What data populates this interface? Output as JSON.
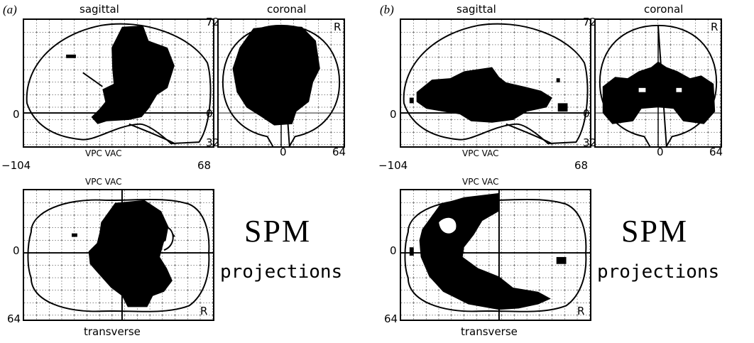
{
  "panels": [
    {
      "label": "(a)",
      "sagittal_title": "sagittal",
      "coronal_title": "coronal",
      "transverse_title": "transverse",
      "sagittal_zero": "0",
      "coronal_top": "72",
      "coronal_zero": "0",
      "coronal_bottom": "32",
      "coronal_x_zero": "0",
      "coronal_x_right": "64",
      "coronal_R": "R",
      "sagittal_vpc_vac": "VPC VAC",
      "x_left": "−104",
      "x_right": "68",
      "transverse_vpc_vac": "VPC VAC",
      "transverse_zero": "0",
      "transverse_bottom": "64",
      "transverse_R": "R",
      "spm": "SPM",
      "projections": "projections"
    },
    {
      "label": "(b)",
      "sagittal_title": "sagittal",
      "coronal_title": "coronal",
      "transverse_title": "transverse",
      "sagittal_zero": "0",
      "coronal_top": "72",
      "coronal_zero": "0",
      "coronal_bottom": "32",
      "coronal_x_zero": "0",
      "coronal_x_right": "64",
      "coronal_R": "R",
      "sagittal_vpc_vac": "VPC VAC",
      "x_left": "−104",
      "x_right": "68",
      "transverse_vpc_vac": "VPC VAC",
      "transverse_zero": "0",
      "transverse_bottom": "64",
      "transverse_R": "R",
      "spm": "SPM",
      "projections": "projections"
    }
  ],
  "colors": {
    "ink": "#000000",
    "grid": "#000000",
    "background": "#ffffff"
  }
}
